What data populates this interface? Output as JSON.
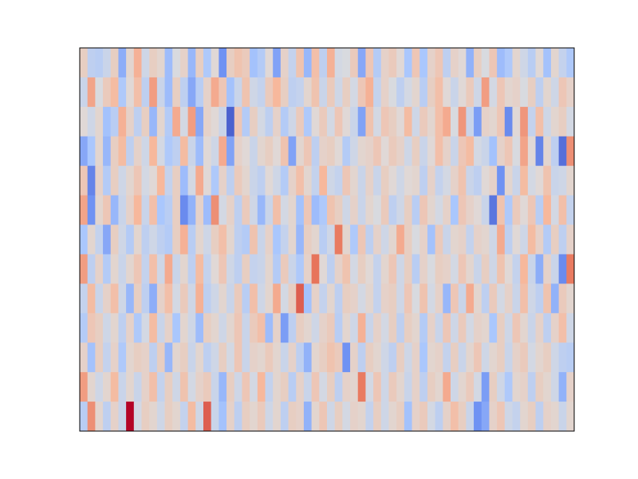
{
  "figure": {
    "background": "#ffffff"
  },
  "chart_data": {
    "type": "heatmap",
    "title": "",
    "xlabel": "",
    "ylabel": "",
    "xticks": [],
    "yticks": [],
    "colormap": "coolwarm",
    "colormap_stops": [
      "#3b4cc0",
      "#6f92f3",
      "#aac7fd",
      "#dddcdc",
      "#f7b89c",
      "#e7745b",
      "#b40426"
    ],
    "vmin": -3,
    "vmax": 3,
    "colorbar": false,
    "grid": false,
    "n_rows": 13,
    "n_cols": 64,
    "values": [
      [
        0.4,
        -0.6,
        -0.7,
        -0.4,
        0.4,
        -1.5,
        0.2,
        1.1,
        -0.3,
        0.4,
        0.2,
        -1.2,
        -0.1,
        0.3,
        -1.3,
        0.4,
        -0.9,
        0.1,
        -2.0,
        0.4,
        0.7,
        0.5,
        -1.1,
        -0.8,
        0.1,
        -1.7,
        0.3,
        -0.5,
        0.7,
        -1.3,
        0.8,
        -0.6,
        1.1,
        -0.2,
        -0.1,
        0.5,
        -1.6,
        0.6,
        -0.8,
        0.3,
        0.5,
        0.1,
        -1.0,
        0.6,
        -1.0,
        0.3,
        0.6,
        -0.6,
        0.3,
        0.1,
        -1.4,
        0.4,
        -0.1,
        0.6,
        -1.2,
        -0.9,
        0.2,
        -0.3,
        -0.7,
        0.1,
        -1.1,
        0.2,
        -0.5,
        -0.9
      ],
      [
        -0.4,
        1.3,
        -0.1,
        0.5,
        0.9,
        -0.9,
        0.1,
        0.8,
        -0.6,
        1.4,
        -0.4,
        -1.2,
        0.4,
        -0.6,
        -1.6,
        -0.7,
        0.3,
        1.2,
        0.6,
        -1.1,
        -0.4,
        0.7,
        -0.3,
        -0.5,
        0.5,
        1.0,
        0.4,
        -0.6,
        -0.5,
        0.2,
        0.7,
        -0.4,
        0.5,
        -0.3,
        0.4,
        -0.2,
        0.6,
        1.1,
        -0.5,
        0.3,
        -0.1,
        -0.6,
        -0.2,
        0.2,
        -0.7,
        0.4,
        0.8,
        0.1,
        -0.4,
        0.1,
        0.5,
        -0.3,
        1.4,
        -0.2,
        0.6,
        0.2,
        0.3,
        -0.1,
        0.4,
        -0.6,
        0.2,
        -0.3,
        0.6,
        0.3
      ],
      [
        0.1,
        -0.3,
        0.2,
        -1.1,
        -0.7,
        1.1,
        0.3,
        -0.6,
        0.4,
        -1.3,
        0.2,
        -0.8,
        1.2,
        -0.2,
        1.4,
        -1.6,
        0.3,
        0.1,
        -0.4,
        -2.7,
        0.6,
        -0.8,
        0.4,
        -0.2,
        -0.6,
        0.3,
        -0.8,
        -0.3,
        0.5,
        -0.9,
        0.1,
        0.5,
        -0.2,
        0.6,
        0.1,
        -0.4,
        -1.7,
        0.7,
        -0.2,
        0.6,
        0.4,
        0.1,
        0.9,
        -0.3,
        0.5,
        0.2,
        0.8,
        1.2,
        -0.1,
        1.5,
        -0.4,
        -1.8,
        0.3,
        0.2,
        0.6,
        -2.1,
        0.1,
        1.5,
        -0.5,
        0.8,
        -0.3,
        0.2,
        0.4,
        -0.2
      ],
      [
        -1.6,
        -1.0,
        0.2,
        -1.3,
        0.4,
        0.9,
        -0.6,
        0.3,
        -0.3,
        1.0,
        -0.2,
        -0.9,
        -0.6,
        0.9,
        -0.4,
        -1.2,
        0.1,
        -0.3,
        1.2,
        -1.7,
        0.3,
        0.1,
        -0.4,
        0.2,
        0.4,
        0.1,
        0.7,
        -1.7,
        0.2,
        0.6,
        -0.6,
        0.3,
        0.4,
        0.1,
        -0.8,
        -0.3,
        0.2,
        0.3,
        0.6,
        0.1,
        0.5,
        0.3,
        -0.3,
        0.4,
        -0.4,
        0.1,
        0.8,
        0.3,
        -0.4,
        0.6,
        0.9,
        -0.2,
        -0.4,
        -1.1,
        0.3,
        0.6,
        -0.1,
        1.3,
        0.1,
        -2.2,
        0.2,
        -0.6,
        -2.5,
        1.6
      ],
      [
        0.6,
        -2.2,
        0.3,
        -0.8,
        0.4,
        -0.3,
        0.2,
        0.6,
        -0.2,
        0.1,
        1.0,
        -0.5,
        0.4,
        -1.2,
        -0.2,
        1.2,
        0.1,
        -0.9,
        0.3,
        -0.6,
        0.5,
        0.2,
        -0.4,
        -0.6,
        0.1,
        -0.3,
        -0.8,
        0.3,
        0.8,
        0.2,
        -0.5,
        1.0,
        -0.3,
        -0.5,
        0.6,
        0.2,
        -0.4,
        0.3,
        -0.4,
        0.4,
        0.1,
        -0.3,
        0.1,
        0.2,
        -0.6,
        0.3,
        -0.5,
        -0.2,
        0.3,
        0.7,
        -0.4,
        -0.6,
        0.1,
        0.3,
        -2.0,
        0.2,
        -0.4,
        0.9,
        -0.2,
        0.1,
        0.7,
        -0.4,
        -0.3,
        0.2
      ],
      [
        1.3,
        -2.0,
        0.2,
        0.6,
        -1.3,
        -0.4,
        0.3,
        1.0,
        -0.4,
        0.8,
        -1.0,
        -0.7,
        0.4,
        -2.1,
        -1.4,
        0.3,
        -1.2,
        1.6,
        -0.2,
        0.3,
        -0.6,
        0.5,
        -0.3,
        -1.3,
        -0.4,
        0.8,
        -0.2,
        0.2,
        -1.1,
        0.6,
        -1.2,
        -0.9,
        0.7,
        0.4,
        -0.3,
        0.3,
        -0.4,
        0.2,
        -0.1,
        0.5,
        -0.6,
        -0.3,
        0.4,
        -0.7,
        0.6,
        0.2,
        -0.2,
        0.3,
        -1.0,
        0.6,
        0.3,
        0.1,
        -0.4,
        -2.4,
        0.7,
        -0.9,
        0.5,
        0.1,
        0.6,
        -0.7,
        1.0,
        -0.2,
        0.8,
        -0.5
      ],
      [
        -1.0,
        0.2,
        -0.5,
        -1.6,
        0.4,
        -0.3,
        -0.8,
        0.2,
        -0.6,
        -0.3,
        -0.6,
        -0.8,
        0.4,
        1.1,
        -0.7,
        0.2,
        -0.3,
        0.4,
        0.8,
        0.2,
        -0.6,
        -0.8,
        0.7,
        -0.4,
        0.3,
        -1.0,
        -0.5,
        0.2,
        -1.3,
        0.4,
        0.2,
        -0.7,
        -0.3,
        1.9,
        0.2,
        -0.9,
        0.6,
        -0.6,
        0.3,
        -0.3,
        0.2,
        1.2,
        0.4,
        -0.1,
        0.3,
        -1.1,
        0.5,
        -0.4,
        0.2,
        0.3,
        -0.5,
        0.3,
        0.2,
        -0.3,
        1.2,
        -0.6,
        0.1,
        -0.3,
        0.9,
        0.3,
        -0.8,
        0.4,
        -0.6,
        0.3
      ],
      [
        1.4,
        -0.6,
        0.3,
        -0.8,
        0.2,
        -0.4,
        0.2,
        0.6,
        -0.5,
        0.8,
        -0.3,
        1.2,
        -0.4,
        0.2,
        -0.6,
        0.9,
        -0.5,
        0.1,
        0.6,
        -0.3,
        -0.6,
        0.4,
        -0.5,
        -0.4,
        0.2,
        -0.8,
        0.5,
        -0.4,
        -0.9,
        0.3,
        2.0,
        0.1,
        -0.6,
        0.3,
        0.7,
        -0.2,
        0.4,
        0.1,
        -0.5,
        0.2,
        0.6,
        -0.3,
        0.4,
        -0.7,
        0.3,
        -0.1,
        0.4,
        0.3,
        -0.2,
        0.6,
        0.2,
        -0.4,
        0.4,
        -0.3,
        0.7,
        0.1,
        -0.5,
        1.0,
        -0.4,
        -1.5,
        0.3,
        -0.4,
        -2.1,
        1.9
      ],
      [
        -0.5,
        0.9,
        -0.4,
        0.3,
        0.8,
        -0.3,
        -1.3,
        0.4,
        -0.6,
        -1.5,
        0.3,
        0.8,
        -0.2,
        0.5,
        -0.3,
        1.1,
        -0.6,
        -0.3,
        0.2,
        -0.4,
        0.5,
        -0.7,
        0.8,
        -0.3,
        0.2,
        1.2,
        -0.2,
        0.4,
        2.2,
        -1.1,
        0.3,
        -0.5,
        0.2,
        -0.6,
        0.4,
        0.3,
        -0.2,
        0.2,
        -0.5,
        0.3,
        0.4,
        -0.3,
        0.6,
        -0.1,
        0.7,
        -0.2,
        0.3,
        -1.3,
        0.6,
        -0.4,
        1.2,
        0.2,
        -0.6,
        0.5,
        -0.2,
        0.3,
        -0.4,
        0.8,
        -0.3,
        -0.6,
        0.7,
        -1.4,
        0.5,
        0.2
      ],
      [
        -0.8,
        0.6,
        0.4,
        -0.3,
        0.2,
        -0.6,
        0.3,
        -0.9,
        -0.2,
        0.9,
        -0.4,
        0.3,
        -1.0,
        0.2,
        -0.3,
        -1.2,
        0.4,
        0.2,
        -0.3,
        0.2,
        0.6,
        -0.4,
        0.5,
        0.8,
        -1.2,
        0.3,
        -1.8,
        -0.6,
        0.4,
        0.2,
        -0.3,
        0.3,
        0.5,
        -0.7,
        0.2,
        -0.3,
        1.1,
        -0.4,
        0.3,
        -0.2,
        0.4,
        -0.6,
        0.4,
        0.2,
        -0.8,
        0.3,
        -0.4,
        0.6,
        -0.3,
        0.5,
        -0.2,
        0.3,
        0.2,
        -1.0,
        0.4,
        -0.3,
        0.6,
        0.2,
        -0.4,
        0.3,
        -0.6,
        0.3,
        0.8,
        -0.3
      ],
      [
        0.3,
        -1.1,
        0.4,
        -0.5,
        0.3,
        -0.9,
        0.2,
        0.4,
        0.3,
        -0.6,
        0.4,
        -1.3,
        0.2,
        0.4,
        -0.4,
        0.2,
        -0.6,
        -0.3,
        0.4,
        -0.2,
        0.6,
        -0.4,
        0.3,
        0.2,
        0.5,
        0.2,
        -0.4,
        0.3,
        -0.6,
        -1.4,
        0.2,
        0.4,
        0.7,
        0.5,
        -2.0,
        0.3,
        -0.6,
        0.4,
        0.2,
        -0.3,
        -0.6,
        0.4,
        -0.3,
        0.3,
        -1.0,
        0.2,
        0.3,
        -0.5,
        0.4,
        -0.4,
        0.2,
        0.6,
        -0.3,
        0.2,
        0.4,
        -0.4,
        0.3,
        0.5,
        -0.2,
        0.2,
        0.4,
        -0.3,
        -0.6,
        -0.7
      ],
      [
        1.4,
        0.2,
        -0.3,
        0.2,
        0.9,
        -0.4,
        0.2,
        -0.4,
        0.3,
        0.8,
        -0.5,
        0.4,
        -0.3,
        0.7,
        -0.2,
        0.3,
        0.5,
        -0.4,
        -1.3,
        0.4,
        -0.3,
        0.6,
        -0.2,
        1.0,
        -0.5,
        0.2,
        0.4,
        -0.7,
        0.3,
        -0.4,
        0.6,
        -0.2,
        0.4,
        -0.6,
        0.3,
        0.2,
        1.9,
        -0.2,
        0.6,
        -0.3,
        0.5,
        0.2,
        -0.4,
        0.3,
        -0.6,
        0.4,
        0.2,
        1.2,
        -0.3,
        0.2,
        0.5,
        -0.2,
        -1.8,
        0.4,
        -0.3,
        -0.9,
        0.2,
        0.3,
        -0.6,
        0.4,
        0.2,
        -0.3,
        -1.4,
        0.3
      ],
      [
        -0.7,
        1.6,
        0.2,
        -0.6,
        0.3,
        -0.4,
        3.0,
        -0.2,
        0.4,
        0.2,
        -0.3,
        0.4,
        0.2,
        -0.5,
        0.9,
        -0.3,
        2.2,
        -0.4,
        -1.1,
        0.3,
        -0.6,
        0.4,
        0.2,
        0.5,
        -0.3,
        0.2,
        -0.6,
        0.4,
        0.3,
        -1.4,
        0.2,
        0.6,
        -0.3,
        0.4,
        -0.2,
        0.3,
        0.2,
        -0.5,
        0.4,
        -0.3,
        0.2,
        0.4,
        -1.1,
        0.3,
        0.5,
        -0.2,
        -0.6,
        0.3,
        0.8,
        0.4,
        -0.4,
        -2.0,
        -1.6,
        0.3,
        0.6,
        -0.3,
        -0.5,
        0.2,
        0.4,
        -0.6,
        0.3,
        0.2,
        -0.4,
        0.2
      ]
    ]
  }
}
